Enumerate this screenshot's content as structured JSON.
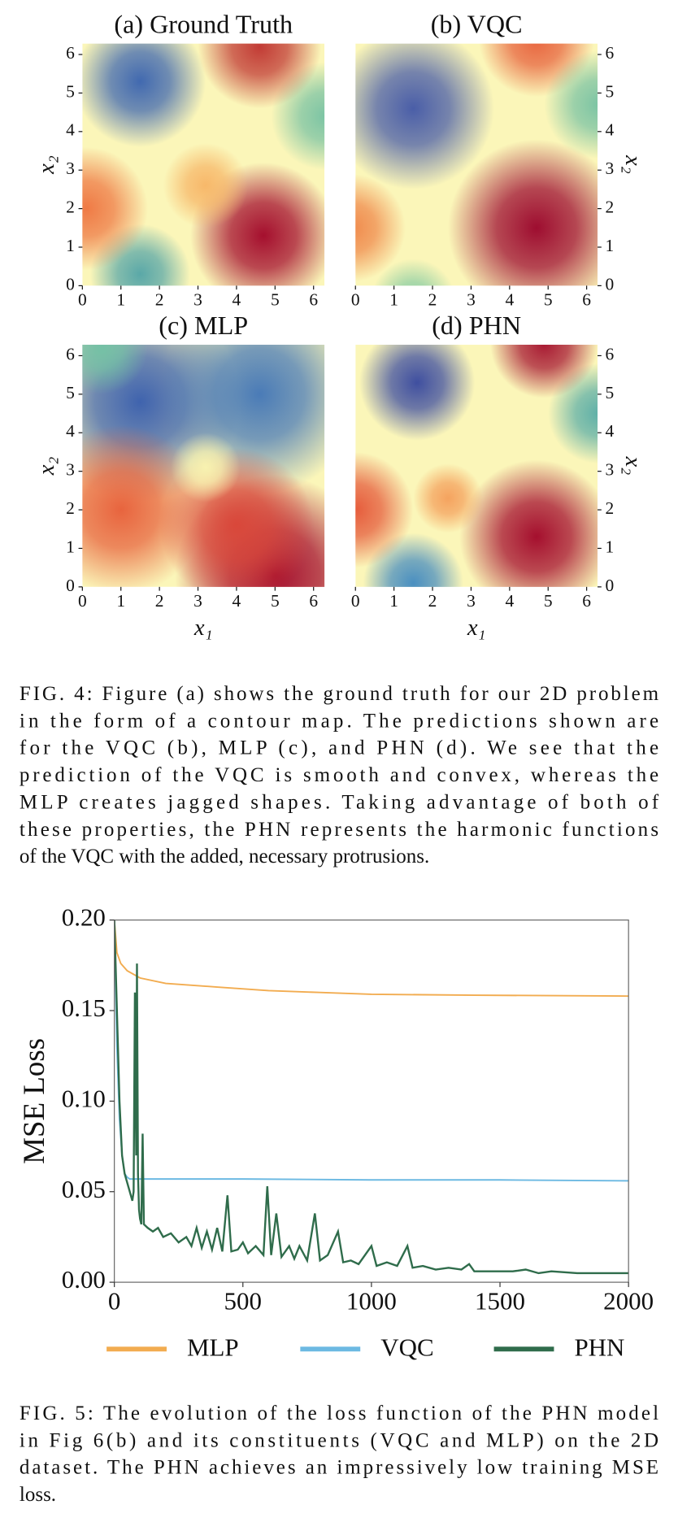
{
  "chart_data": [
    {
      "type": "heatmap",
      "panels": [
        "(a) Ground Truth",
        "(b) VQC",
        "(c) MLP",
        "(d) PHN"
      ],
      "xlim": [
        0,
        6.283
      ],
      "ylim": [
        0,
        6.283
      ],
      "xticks": [
        0,
        1,
        2,
        3,
        4,
        5,
        6
      ],
      "yticks": [
        0,
        1,
        2,
        3,
        4,
        5,
        6
      ],
      "xlabel": "x₁",
      "ylabel": "x₂"
    },
    {
      "type": "line",
      "ylabel": "MSE Loss",
      "xlim": [
        0,
        2000
      ],
      "ylim": [
        0,
        0.2
      ],
      "xticks": [
        0,
        500,
        1000,
        1500,
        2000
      ],
      "yticks": [
        {
          "value": 0,
          "label": "0.00"
        },
        {
          "value": 0.05,
          "label": "0.05"
        },
        {
          "value": 0.1,
          "label": "0.10"
        },
        {
          "value": 0.15,
          "label": "0.15"
        },
        {
          "value": 0.2,
          "label": "0.20"
        }
      ],
      "series": [
        {
          "name": "MLP",
          "color": "#f2ac50",
          "x": [
            0,
            10,
            25,
            50,
            100,
            200,
            400,
            600,
            800,
            1000,
            1400,
            2000
          ],
          "values": [
            0.2,
            0.182,
            0.176,
            0.172,
            0.168,
            0.165,
            0.163,
            0.161,
            0.16,
            0.159,
            0.1585,
            0.158
          ]
        },
        {
          "name": "VQC",
          "color": "#6cb9e2",
          "x": [
            0,
            10,
            20,
            30,
            40,
            50,
            60,
            100,
            500,
            1000,
            1500,
            2000
          ],
          "values": [
            0.2,
            0.13,
            0.09,
            0.07,
            0.06,
            0.058,
            0.057,
            0.057,
            0.057,
            0.0565,
            0.0565,
            0.056
          ]
        },
        {
          "name": "PHN",
          "color": "#2f6c4b",
          "x": [
            0,
            10,
            20,
            30,
            40,
            50,
            60,
            70,
            75,
            80,
            85,
            88,
            92,
            96,
            100,
            105,
            110,
            115,
            130,
            150,
            170,
            190,
            220,
            250,
            280,
            300,
            320,
            340,
            360,
            380,
            400,
            420,
            440,
            455,
            480,
            500,
            520,
            550,
            580,
            595,
            610,
            630,
            650,
            680,
            700,
            720,
            750,
            780,
            800,
            830,
            870,
            890,
            920,
            950,
            1000,
            1020,
            1060,
            1100,
            1140,
            1160,
            1200,
            1250,
            1300,
            1350,
            1380,
            1400,
            1500,
            1550,
            1600,
            1650,
            1700,
            1800,
            1900,
            2000
          ],
          "values": [
            0.2,
            0.15,
            0.1,
            0.07,
            0.06,
            0.055,
            0.05,
            0.045,
            0.05,
            0.16,
            0.07,
            0.176,
            0.06,
            0.04,
            0.035,
            0.032,
            0.082,
            0.032,
            0.03,
            0.028,
            0.03,
            0.025,
            0.027,
            0.022,
            0.025,
            0.02,
            0.03,
            0.019,
            0.028,
            0.018,
            0.03,
            0.017,
            0.048,
            0.017,
            0.018,
            0.022,
            0.016,
            0.02,
            0.015,
            0.053,
            0.015,
            0.038,
            0.014,
            0.02,
            0.013,
            0.02,
            0.012,
            0.038,
            0.012,
            0.015,
            0.028,
            0.011,
            0.012,
            0.01,
            0.02,
            0.009,
            0.011,
            0.009,
            0.02,
            0.008,
            0.009,
            0.007,
            0.008,
            0.007,
            0.01,
            0.006,
            0.006,
            0.006,
            0.007,
            0.005,
            0.006,
            0.005,
            0.005,
            0.005
          ]
        }
      ]
    }
  ],
  "captions": [
    {
      "lines": [
        "FIG. 4: Figure (a) shows the ground truth for our 2D problem",
        "in the form of a contour map.  The predictions shown are",
        "for the VQC (b), MLP (c), and PHN (d).  We see that the",
        "prediction of the VQC is smooth and convex, whereas the",
        "MLP creates jagged shapes.  Taking advantage of both of",
        "these properties, the PHN represents the harmonic functions",
        "of the VQC with the added, necessary protrusions."
      ]
    },
    {
      "lines": [
        "FIG. 5: The evolution of the loss function of the PHN model",
        "in Fig 6(b) and its constituents (VQC and MLP) on the 2D",
        "dataset.  The PHN achieves an impressively low training MSE",
        "loss."
      ]
    }
  ]
}
